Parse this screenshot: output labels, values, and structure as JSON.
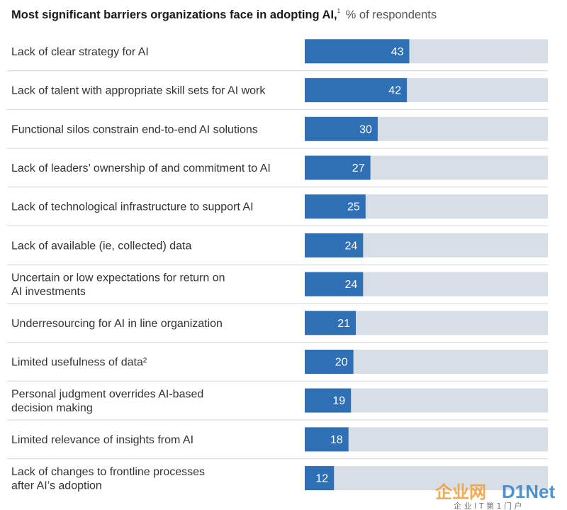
{
  "title": {
    "main": "Most significant barriers organizations face in adopting AI,",
    "footnote_mark": "1",
    "unit": "% of respondents"
  },
  "colors": {
    "bar": "#2e6fb5",
    "track": "#d8dee5",
    "divider": "#d6d6d6",
    "watermark_orange": "#f39c33",
    "watermark_blue": "#2f80c9"
  },
  "watermark": {
    "text_cn": "企业网",
    "text_en": "D1Net",
    "sub": "企 业 I T 第 1 门 户"
  },
  "chart_data": {
    "type": "bar",
    "orientation": "horizontal",
    "xlim": [
      0,
      100
    ],
    "grid": false,
    "legend": "none",
    "categories": [
      [
        "Lack of clear strategy for AI"
      ],
      [
        "Lack of talent with appropriate skill sets for AI work"
      ],
      [
        "Functional silos constrain end-to-end AI solutions"
      ],
      [
        "Lack of leaders’ ownership of and commitment to AI"
      ],
      [
        "Lack of technological infrastructure to support AI"
      ],
      [
        "Lack of available (ie, collected) data"
      ],
      [
        "Uncertain or low expectations for return on",
        "AI investments"
      ],
      [
        "Underresourcing for AI in line organization"
      ],
      [
        "Limited usefulness of data²"
      ],
      [
        "Personal judgment overrides AI-based",
        "decision making"
      ],
      [
        "Limited relevance of insights from AI"
      ],
      [
        "Lack of changes to frontline processes",
        "after AI’s adoption"
      ]
    ],
    "values": [
      43,
      42,
      30,
      27,
      25,
      24,
      24,
      21,
      20,
      19,
      18,
      12
    ]
  }
}
